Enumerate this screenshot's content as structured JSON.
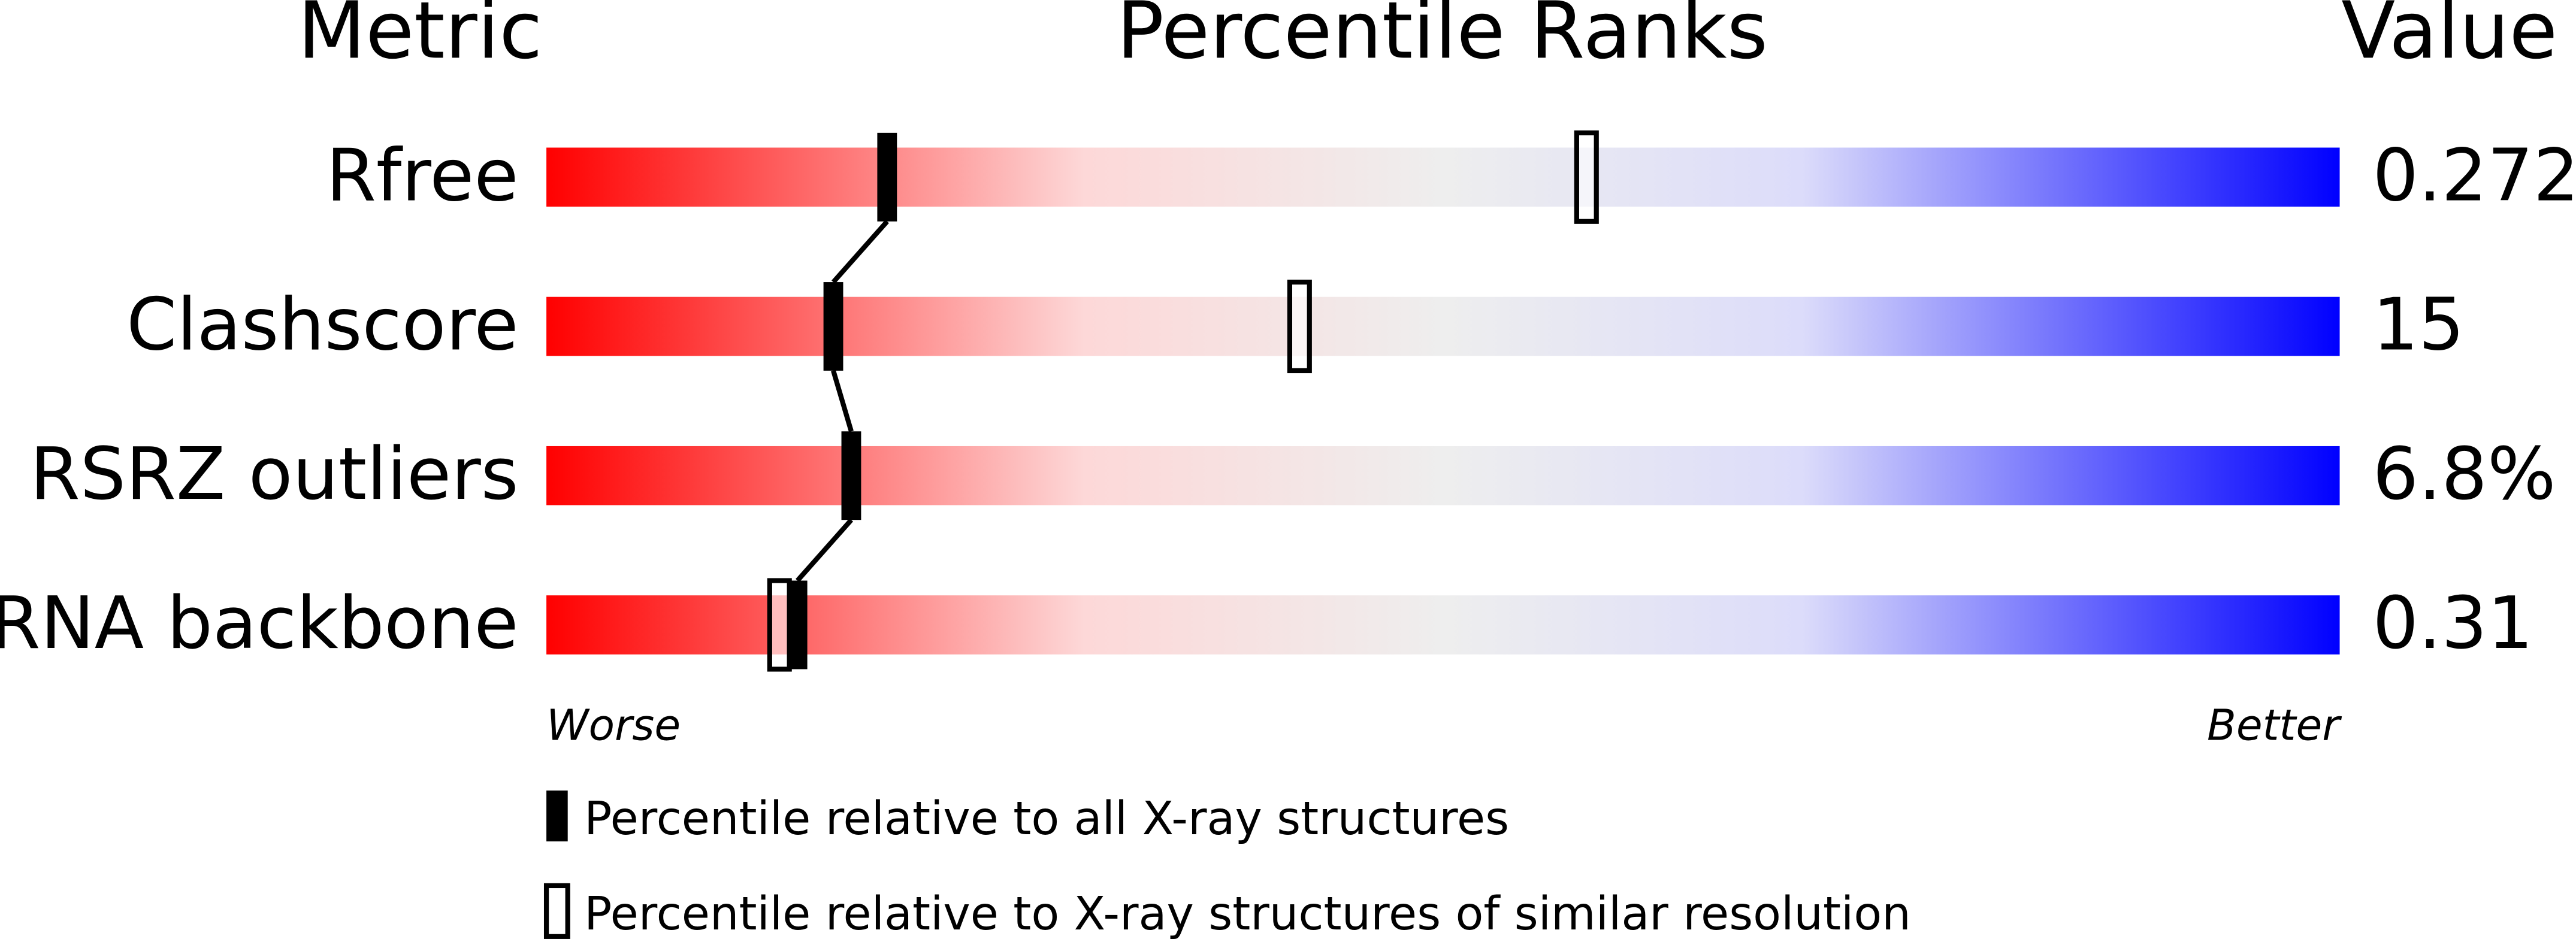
{
  "chart_data": {
    "type": "percentile-slider",
    "headers": [
      "Metric",
      "Percentile Ranks",
      "Value"
    ],
    "categories": [
      "Rfree",
      "Clashscore",
      "RSRZ outliers",
      "RNA backbone"
    ],
    "metric_values": [
      "0.272",
      "15",
      "6.8%",
      "0.31"
    ],
    "xlim": [
      0,
      100
    ],
    "axis_labels": [
      "Worse",
      "Better"
    ],
    "series": [
      {
        "name": "Percentile relative to all X-ray structures",
        "style": "filled",
        "color": "#000000",
        "values": [
          19,
          16,
          17,
          14
        ]
      },
      {
        "name": "Percentile relative to X-ray structures of similar resolution",
        "style": "hollow",
        "color": "#000000",
        "values": [
          58,
          42,
          null,
          13
        ]
      }
    ]
  }
}
